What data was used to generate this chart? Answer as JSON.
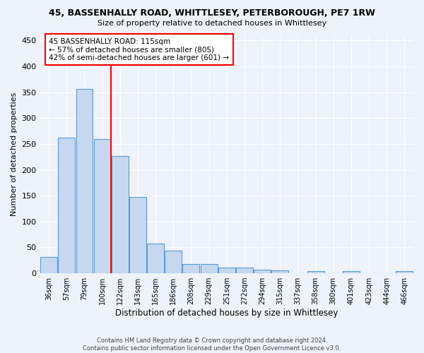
{
  "title": "45, BASSENHALLY ROAD, WHITTLESEY, PETERBOROUGH, PE7 1RW",
  "subtitle": "Size of property relative to detached houses in Whittlesey",
  "xlabel": "Distribution of detached houses by size in Whittlesey",
  "ylabel": "Number of detached properties",
  "bar_color": "#c5d8f0",
  "bar_edge_color": "#5b9bd5",
  "bin_labels": [
    "36sqm",
    "57sqm",
    "79sqm",
    "100sqm",
    "122sqm",
    "143sqm",
    "165sqm",
    "186sqm",
    "208sqm",
    "229sqm",
    "251sqm",
    "272sqm",
    "294sqm",
    "315sqm",
    "337sqm",
    "358sqm",
    "380sqm",
    "401sqm",
    "423sqm",
    "444sqm",
    "466sqm"
  ],
  "bar_heights": [
    31,
    262,
    356,
    259,
    226,
    148,
    57,
    44,
    18,
    18,
    11,
    11,
    7,
    5,
    0,
    4,
    0,
    4,
    0,
    0,
    4
  ],
  "vline_bin_index": 3.5,
  "vline_color": "red",
  "annotation_text": "45 BASSENHALLY ROAD: 115sqm\n← 57% of detached houses are smaller (805)\n42% of semi-detached houses are larger (601) →",
  "annotation_box_color": "white",
  "annotation_box_edge_color": "red",
  "ylim": [
    0,
    460
  ],
  "yticks": [
    0,
    50,
    100,
    150,
    200,
    250,
    300,
    350,
    400,
    450
  ],
  "footnote": "Contains HM Land Registry data © Crown copyright and database right 2024.\nContains public sector information licensed under the Open Government Licence v3.0.",
  "background_color": "#eef2fa",
  "grid_color": "#ffffff"
}
